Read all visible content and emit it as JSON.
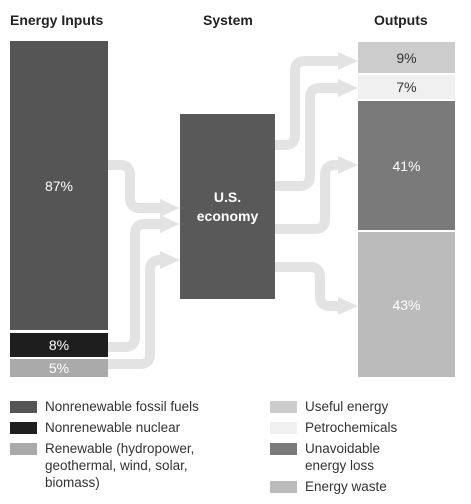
{
  "headers": {
    "inputs": "Energy Inputs",
    "system": "System",
    "outputs": "Outputs"
  },
  "inputs": [
    {
      "id": "fossil",
      "label": "87%",
      "color": "#555555"
    },
    {
      "id": "nuclear",
      "label": "8%",
      "color": "#1e1e1e"
    },
    {
      "id": "renewable",
      "label": "5%",
      "color": "#aaaaaa"
    }
  ],
  "system": {
    "line1": "U.S.",
    "line2": "economy",
    "color": "#595959"
  },
  "outputs": [
    {
      "id": "useful",
      "label": "9%",
      "color": "#cccccc"
    },
    {
      "id": "petro",
      "label": "7%",
      "color": "#f0f0f0"
    },
    {
      "id": "loss",
      "label": "41%",
      "color": "#7a7a7a"
    },
    {
      "id": "waste",
      "label": "43%",
      "color": "#bbbbbb"
    }
  ],
  "flow_color": "#e3e3e3",
  "legend_left": [
    {
      "label": "Nonrenewable fossil fuels",
      "color": "#555555"
    },
    {
      "label": "Nonrenewable nuclear",
      "color": "#1e1e1e"
    },
    {
      "label": "Renewable (hydropower, geothermal, wind, solar, biomass)",
      "color": "#aaaaaa"
    }
  ],
  "legend_right": [
    {
      "label": "Useful energy",
      "color": "#cccccc"
    },
    {
      "label": "Petrochemicals",
      "color": "#f0f0f0"
    },
    {
      "label": "Unavoidable energy loss",
      "color": "#7a7a7a"
    },
    {
      "label": "Energy waste",
      "color": "#bbbbbb"
    }
  ]
}
